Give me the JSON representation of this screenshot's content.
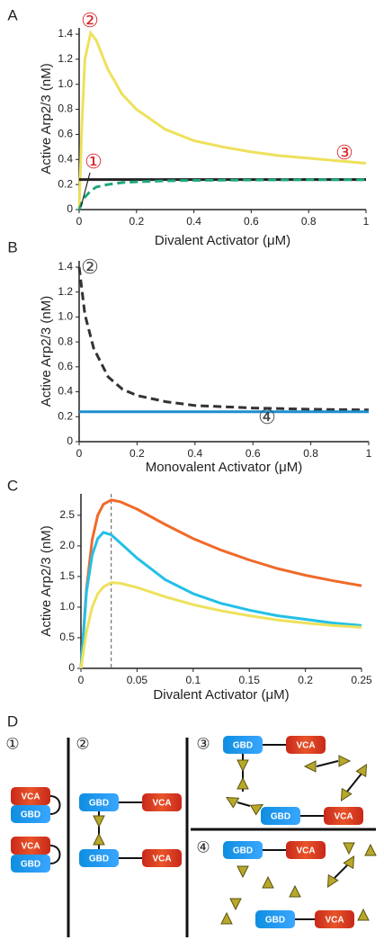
{
  "chart_data": [
    {
      "type": "line",
      "panel_label": "A",
      "x_label": "Divalent Activator (μM)",
      "y_label": "Active Arp2/3 (nM)",
      "x": [
        0,
        0.01,
        0.02,
        0.04,
        0.06,
        0.1,
        0.15,
        0.2,
        0.3,
        0.4,
        0.5,
        0.6,
        0.7,
        0.8,
        0.9,
        1
      ],
      "series": [
        {
          "color": "#eee15c",
          "dash": false,
          "values": [
            0,
            0.7,
            1.2,
            1.41,
            1.35,
            1.12,
            0.92,
            0.8,
            0.64,
            0.55,
            0.5,
            0.46,
            0.43,
            0.41,
            0.39,
            0.37
          ]
        },
        {
          "color": "#222222",
          "dash": false,
          "values": [
            0.24,
            0.24,
            0.24,
            0.24,
            0.24,
            0.24,
            0.24,
            0.24,
            0.24,
            0.24,
            0.24,
            0.24,
            0.24,
            0.24,
            0.24,
            0.24
          ]
        },
        {
          "color": "#1fa77f",
          "dash": true,
          "values": [
            0,
            0.06,
            0.1,
            0.15,
            0.18,
            0.2,
            0.215,
            0.222,
            0.23,
            0.233,
            0.235,
            0.236,
            0.237,
            0.238,
            0.238,
            0.239
          ]
        }
      ],
      "xlim": [
        0,
        1
      ],
      "xticks": [
        0,
        0.2,
        0.4,
        0.6,
        0.8,
        1
      ],
      "ylim": [
        0,
        1.45
      ],
      "yticks": [
        0,
        0.2,
        0.4,
        0.6,
        0.8,
        {
          "value": 1,
          "label": "1.0"
        },
        1.2,
        1.4
      ],
      "annotation_color": "#d8262a",
      "annotations": [
        "②",
        "①",
        "③"
      ]
    },
    {
      "type": "line",
      "panel_label": "B",
      "x_label": "Monovalent Activator (μM)",
      "y_label": "Active Arp2/3 (nM)",
      "x": [
        0,
        0.02,
        0.05,
        0.1,
        0.15,
        0.2,
        0.3,
        0.4,
        0.5,
        0.6,
        0.7,
        0.8,
        0.9,
        1
      ],
      "series": [
        {
          "color": "#333333",
          "dash": true,
          "values": [
            1.4,
            1.02,
            0.75,
            0.52,
            0.42,
            0.37,
            0.32,
            0.29,
            0.28,
            0.27,
            0.265,
            0.26,
            0.257,
            0.255
          ]
        },
        {
          "color": "#1b8fcf",
          "dash": false,
          "values": [
            0.24,
            0.24,
            0.24,
            0.24,
            0.24,
            0.24,
            0.24,
            0.24,
            0.24,
            0.24,
            0.24,
            0.24,
            0.24,
            0.24
          ]
        }
      ],
      "xlim": [
        0,
        1
      ],
      "xticks": [
        0,
        0.2,
        0.4,
        0.6,
        0.8,
        1
      ],
      "ylim": [
        0,
        1.45
      ],
      "yticks": [
        0,
        0.2,
        0.4,
        0.6,
        0.8,
        {
          "value": 1,
          "label": "1.0"
        },
        1.2,
        1.4
      ],
      "annotation_color": "#444444",
      "annotations": [
        "②",
        "④"
      ]
    },
    {
      "type": "line",
      "panel_label": "C",
      "x_label": "Divalent Activator (μM)",
      "y_label": "Active Arp2/3 (nM)",
      "x": [
        0,
        0.005,
        0.01,
        0.015,
        0.02,
        0.027,
        0.035,
        0.05,
        0.075,
        0.1,
        0.125,
        0.15,
        0.175,
        0.2,
        0.225,
        0.25
      ],
      "series": [
        {
          "color": "#f06a28",
          "dash": false,
          "values": [
            0,
            1.3,
            2.1,
            2.5,
            2.68,
            2.75,
            2.72,
            2.6,
            2.35,
            2.12,
            1.93,
            1.77,
            1.63,
            1.52,
            1.43,
            1.35
          ]
        },
        {
          "color": "#22c0e8",
          "dash": false,
          "values": [
            0,
            1.25,
            1.85,
            2.12,
            2.22,
            2.18,
            2.05,
            1.8,
            1.45,
            1.22,
            1.06,
            0.95,
            0.86,
            0.8,
            0.74,
            0.7
          ]
        },
        {
          "color": "#eee15c",
          "dash": false,
          "values": [
            0,
            0.6,
            1.0,
            1.22,
            1.33,
            1.4,
            1.39,
            1.32,
            1.17,
            1.04,
            0.94,
            0.86,
            0.79,
            0.74,
            0.7,
            0.67
          ]
        }
      ],
      "vline": 0.027,
      "xlim": [
        0,
        0.25
      ],
      "xticks": [
        0,
        0.05,
        0.1,
        0.15,
        0.2,
        0.25
      ],
      "ylim": [
        0,
        2.85
      ],
      "yticks": [
        0,
        0.5,
        {
          "value": 1,
          "label": "1.0"
        },
        1.5,
        {
          "value": 2,
          "label": "2.0"
        },
        2.5
      ],
      "annotation_color": "#444444",
      "annotations": []
    }
  ],
  "diagram": {
    "panel_label": "D",
    "panels": [
      "①",
      "②",
      "③",
      "④"
    ],
    "gbd": "GBD",
    "vca": "VCA"
  }
}
